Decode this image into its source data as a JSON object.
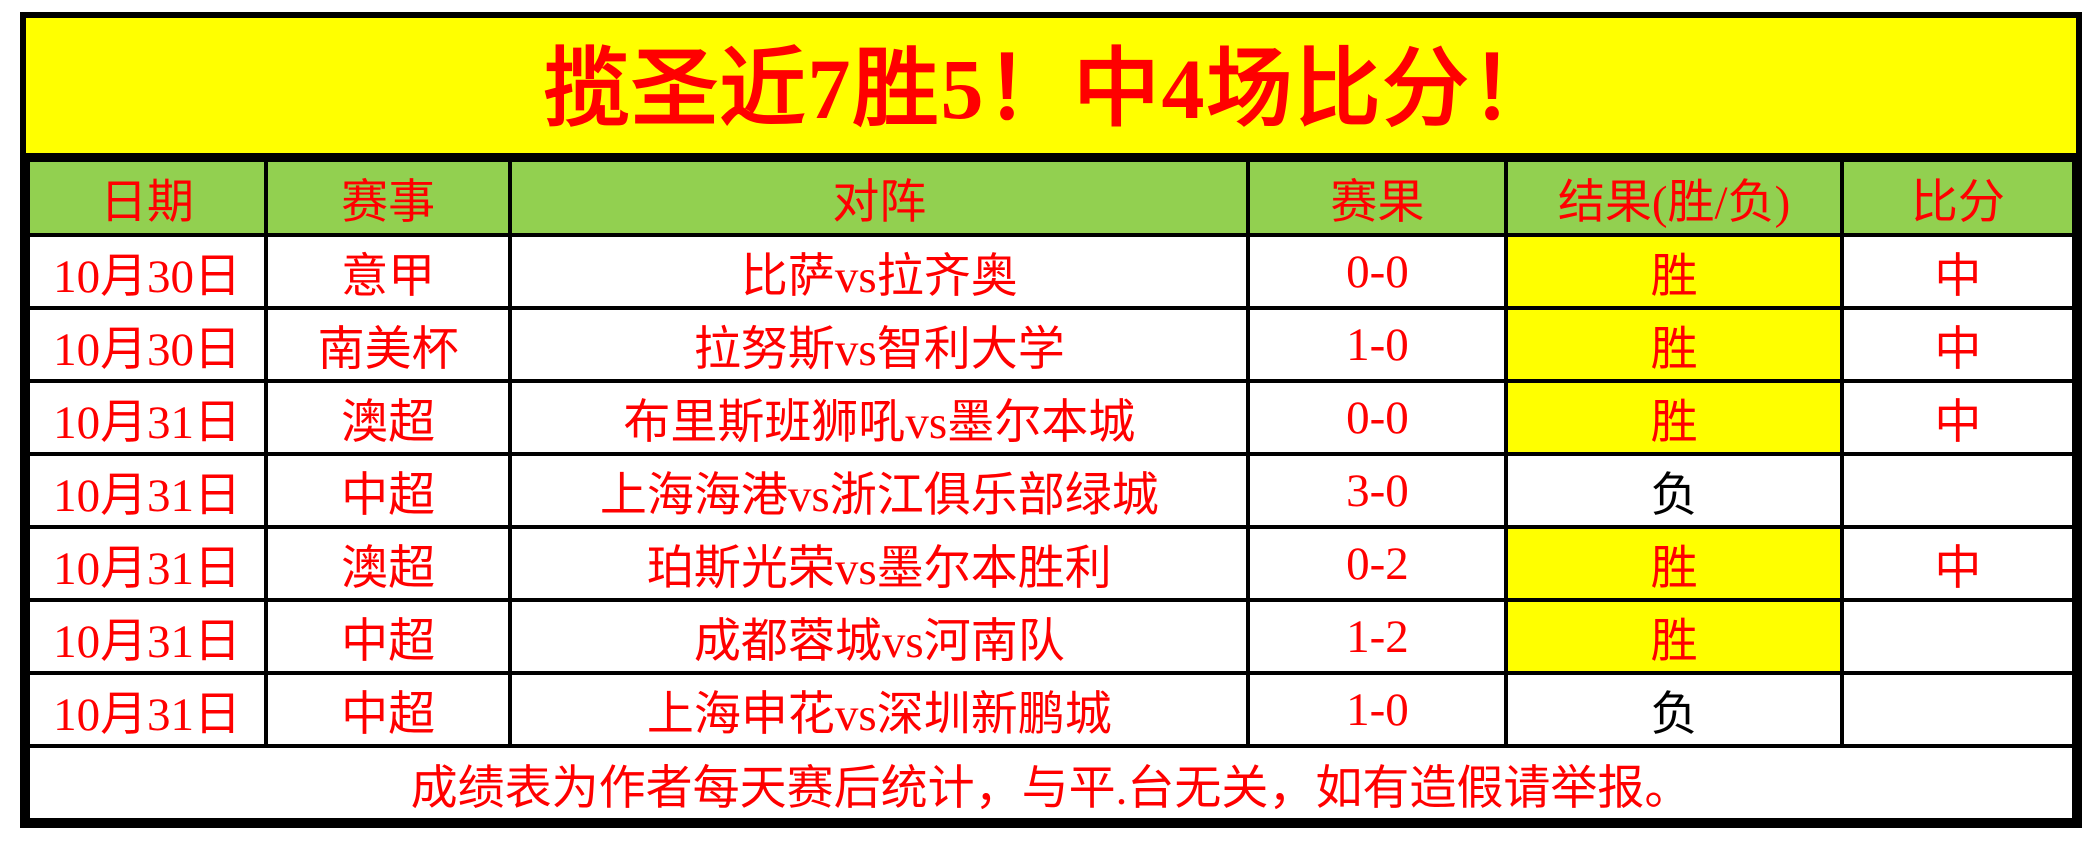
{
  "banner": {
    "title": "揽圣近7胜5！中4场比分！"
  },
  "table": {
    "headers": [
      "日期",
      "赛事",
      "对阵",
      "赛果",
      "结果(胜/负)",
      "比分"
    ],
    "rows": [
      {
        "date": "10月30日",
        "league": "意甲",
        "match": "比萨vs拉齐奥",
        "score": "0-0",
        "result": "胜",
        "hit": "中",
        "highlight": true
      },
      {
        "date": "10月30日",
        "league": "南美杯",
        "match": "拉努斯vs智利大学",
        "score": "1-0",
        "result": "胜",
        "hit": "中",
        "highlight": true
      },
      {
        "date": "10月31日",
        "league": "澳超",
        "match": "布里斯班狮吼vs墨尔本城",
        "score": "0-0",
        "result": "胜",
        "hit": "中",
        "highlight": true
      },
      {
        "date": "10月31日",
        "league": "中超",
        "match": "上海海港vs浙江俱乐部绿城",
        "score": "3-0",
        "result": "负",
        "hit": "",
        "highlight": false
      },
      {
        "date": "10月31日",
        "league": "澳超",
        "match": "珀斯光荣vs墨尔本胜利",
        "score": "0-2",
        "result": "胜",
        "hit": "中",
        "highlight": true
      },
      {
        "date": "10月31日",
        "league": "中超",
        "match": "成都蓉城vs河南队",
        "score": "1-2",
        "result": "胜",
        "hit": "",
        "highlight": true
      },
      {
        "date": "10月31日",
        "league": "中超",
        "match": "上海申花vs深圳新鹏城",
        "score": "1-0",
        "result": "负",
        "hit": "",
        "highlight": false
      }
    ]
  },
  "footer": {
    "note": "成绩表为作者每天赛后统计，与平.台无关，如有造假请举报。"
  },
  "colors": {
    "banner_bg": "#FFFF00",
    "header_bg": "#92D050",
    "win_bg": "#FFFF00",
    "red_text": "#FF0000",
    "loss_text": "#000000",
    "border": "#000000",
    "page_bg": "#FFFFFF"
  }
}
